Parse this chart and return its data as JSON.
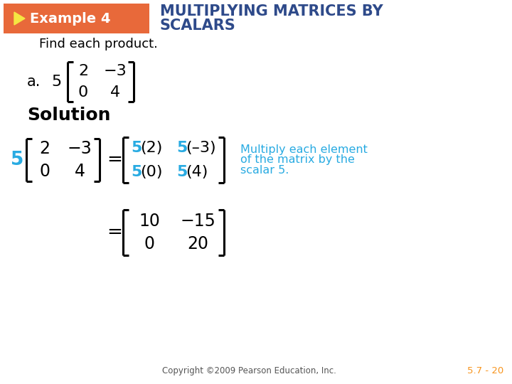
{
  "bg_color": "#ffffff",
  "header_bg": "#e8693a",
  "header_text": "Example 4",
  "header_text_color": "#ffffff",
  "triangle_color": "#f5e642",
  "title_line1": "MULTIPLYING MATRICES BY",
  "title_line2": "SCALARS",
  "title_color": "#2e4a8a",
  "find_text": "Find each product.",
  "a_label": "a.",
  "scalar_black": "5",
  "scalar_cyan": "5",
  "scalar_color": "#29abe2",
  "black_color": "#000000",
  "solution_text": "Solution",
  "note_line1": "Multiply each element",
  "note_line2": "of the matrix by the",
  "note_line3": "scalar 5.",
  "note_color": "#29abe2",
  "copyright_text": "Copyright ©2009 Pearson Education, Inc.",
  "copyright_color": "#555555",
  "page_text": "5.7 - 20",
  "page_color": "#f7941d"
}
